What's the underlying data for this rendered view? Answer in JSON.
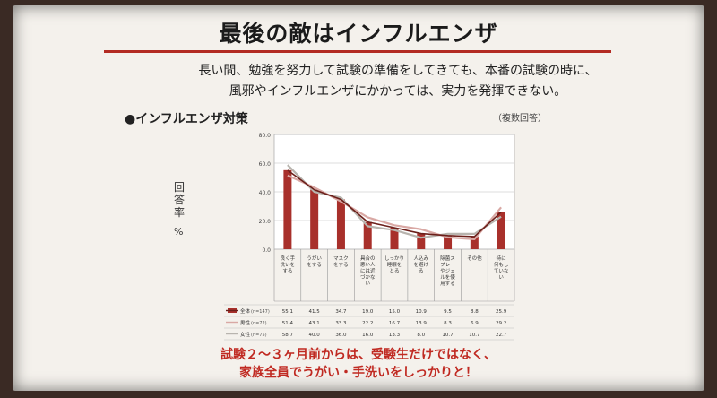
{
  "slide": {
    "title": "最後の敵はインフルエンザ",
    "lead_line1": "長い間、勉強を努力して試験の準備をしてきても、本番の試験の時に、",
    "lead_line2": "風邪やインフルエンザにかかっては、実力を発揮できない。",
    "section_title": "●インフルエンザ対策",
    "note": "（複数回答）",
    "ylabel": "回答率",
    "yunit": "%",
    "bottom_line1": "試験２～３ヶ月前からは、受験生だけではなく、",
    "bottom_line2": "家族全員でうがい・手洗いをしっかりと！"
  },
  "colors": {
    "accent": "#b32b23",
    "bar": "#a8302b",
    "line_total": "#6b1f1a",
    "line_male": "#d9a8a4",
    "line_female": "#b8b4ae",
    "text_red": "#c02a22"
  },
  "chart_data": {
    "type": "bar",
    "ylim": [
      0,
      80
    ],
    "yticks": [
      "80.0",
      "60.0",
      "40.0",
      "20.0",
      "0.0"
    ],
    "categories": [
      [
        "良く手",
        "洗いを",
        "する"
      ],
      [
        "うがい",
        "をする"
      ],
      [
        "マスク",
        "をする"
      ],
      [
        "具合の",
        "悪い人",
        "には近",
        "づかな",
        "い"
      ],
      [
        "しっかり",
        "睡眠を",
        "とる"
      ],
      [
        "人込み",
        "を避け",
        "る"
      ],
      [
        "除菌ス",
        "プレー",
        "やジェ",
        "ルを使",
        "用する"
      ],
      [
        "その他"
      ],
      [
        "特に",
        "何もし",
        "ていな",
        "い"
      ]
    ],
    "series": [
      {
        "name": "全体",
        "n": "(n=147)",
        "values": [
          55.1,
          41.5,
          34.7,
          19.0,
          15.0,
          10.9,
          9.5,
          8.8,
          25.9
        ],
        "labels": [
          "55.1",
          "41.5",
          "34.7",
          "19.0",
          "15.0",
          "10.9",
          "9.5",
          "8.8",
          "25.9"
        ]
      },
      {
        "name": "男性",
        "n": "(n=72)",
        "values": [
          51.4,
          43.1,
          33.3,
          22.2,
          16.7,
          13.9,
          8.3,
          6.9,
          29.2
        ],
        "labels": [
          "51.4",
          "43.1",
          "33.3",
          "22.2",
          "16.7",
          "13.9",
          "8.3",
          "6.9",
          "29.2"
        ]
      },
      {
        "name": "女性",
        "n": "(n=75)",
        "values": [
          58.7,
          40.0,
          36.0,
          16.0,
          13.3,
          8.0,
          10.7,
          10.7,
          22.7
        ],
        "labels": [
          "58.7",
          "40.0",
          "36.0",
          "16.0",
          "13.3",
          "8.0",
          "10.7",
          "10.7",
          "22.7"
        ]
      }
    ]
  }
}
